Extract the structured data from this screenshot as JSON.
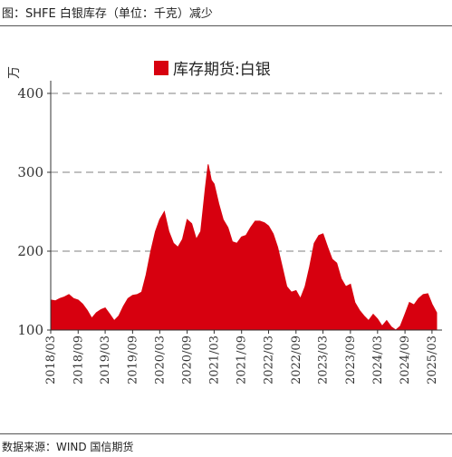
{
  "header": {
    "title": "图：SHFE 白银库存（单位：千克）减少"
  },
  "footer": {
    "source": "数据来源：WIND 国信期货"
  },
  "chart_data": {
    "type": "area",
    "ylabel": "万",
    "ylim": [
      100,
      400
    ],
    "yticks": [
      100,
      200,
      300,
      400
    ],
    "grid": "horizontal-dashed",
    "legend": {
      "placement": "top-center",
      "entries": [
        "库存期货:白银"
      ]
    },
    "color": "#d7000f",
    "categories": [
      "2018/03",
      "2018/09",
      "2019/03",
      "2019/09",
      "2020/03",
      "2020/09",
      "2021/03",
      "2021/09",
      "2022/03",
      "2022/09",
      "2023/03",
      "2023/09",
      "2024/03",
      "2024/09",
      "2025/03"
    ],
    "series": [
      {
        "name": "库存期货:白银",
        "points": [
          [
            "2018-03-01",
            138
          ],
          [
            "2018-04-01",
            137
          ],
          [
            "2018-05-01",
            140
          ],
          [
            "2018-06-01",
            142
          ],
          [
            "2018-07-01",
            145
          ],
          [
            "2018-08-01",
            140
          ],
          [
            "2018-09-01",
            138
          ],
          [
            "2018-10-01",
            133
          ],
          [
            "2018-11-01",
            125
          ],
          [
            "2018-12-01",
            115
          ],
          [
            "2019-01-01",
            122
          ],
          [
            "2019-02-01",
            126
          ],
          [
            "2019-03-01",
            128
          ],
          [
            "2019-04-01",
            120
          ],
          [
            "2019-05-01",
            112
          ],
          [
            "2019-06-01",
            118
          ],
          [
            "2019-07-01",
            130
          ],
          [
            "2019-08-01",
            140
          ],
          [
            "2019-09-01",
            144
          ],
          [
            "2019-10-01",
            145
          ],
          [
            "2019-11-01",
            148
          ],
          [
            "2019-12-01",
            170
          ],
          [
            "2020-01-01",
            200
          ],
          [
            "2020-02-01",
            225
          ],
          [
            "2020-03-01",
            240
          ],
          [
            "2020-04-01",
            250
          ],
          [
            "2020-05-01",
            225
          ],
          [
            "2020-06-01",
            210
          ],
          [
            "2020-07-01",
            205
          ],
          [
            "2020-08-01",
            215
          ],
          [
            "2020-09-01",
            240
          ],
          [
            "2020-10-01",
            235
          ],
          [
            "2020-11-01",
            215
          ],
          [
            "2020-12-01",
            225
          ],
          [
            "2021-01-01",
            280
          ],
          [
            "2021-01-20",
            310
          ],
          [
            "2021-02-10",
            290
          ],
          [
            "2021-03-01",
            285
          ],
          [
            "2021-04-01",
            260
          ],
          [
            "2021-05-01",
            240
          ],
          [
            "2021-06-01",
            230
          ],
          [
            "2021-07-01",
            212
          ],
          [
            "2021-08-01",
            210
          ],
          [
            "2021-09-01",
            218
          ],
          [
            "2021-10-01",
            220
          ],
          [
            "2021-11-01",
            230
          ],
          [
            "2021-12-01",
            238
          ],
          [
            "2022-01-01",
            238
          ],
          [
            "2022-02-01",
            236
          ],
          [
            "2022-03-01",
            232
          ],
          [
            "2022-04-01",
            222
          ],
          [
            "2022-05-01",
            205
          ],
          [
            "2022-06-01",
            180
          ],
          [
            "2022-07-01",
            155
          ],
          [
            "2022-08-01",
            148
          ],
          [
            "2022-09-01",
            150
          ],
          [
            "2022-10-01",
            140
          ],
          [
            "2022-11-01",
            155
          ],
          [
            "2022-12-01",
            180
          ],
          [
            "2023-01-01",
            210
          ],
          [
            "2023-02-01",
            220
          ],
          [
            "2023-03-01",
            222
          ],
          [
            "2023-04-01",
            205
          ],
          [
            "2023-05-01",
            190
          ],
          [
            "2023-06-01",
            185
          ],
          [
            "2023-07-01",
            165
          ],
          [
            "2023-08-01",
            155
          ],
          [
            "2023-09-01",
            158
          ],
          [
            "2023-10-01",
            135
          ],
          [
            "2023-11-01",
            125
          ],
          [
            "2023-12-01",
            118
          ],
          [
            "2024-01-01",
            112
          ],
          [
            "2024-02-01",
            120
          ],
          [
            "2024-03-01",
            114
          ],
          [
            "2024-04-01",
            105
          ],
          [
            "2024-05-01",
            112
          ],
          [
            "2024-06-01",
            104
          ],
          [
            "2024-07-01",
            100
          ],
          [
            "2024-08-01",
            105
          ],
          [
            "2024-09-01",
            120
          ],
          [
            "2024-10-01",
            135
          ],
          [
            "2024-11-01",
            132
          ],
          [
            "2024-12-01",
            140
          ],
          [
            "2025-01-01",
            145
          ],
          [
            "2025-02-01",
            146
          ],
          [
            "2025-03-01",
            133
          ],
          [
            "2025-04-01",
            122
          ]
        ]
      }
    ]
  }
}
